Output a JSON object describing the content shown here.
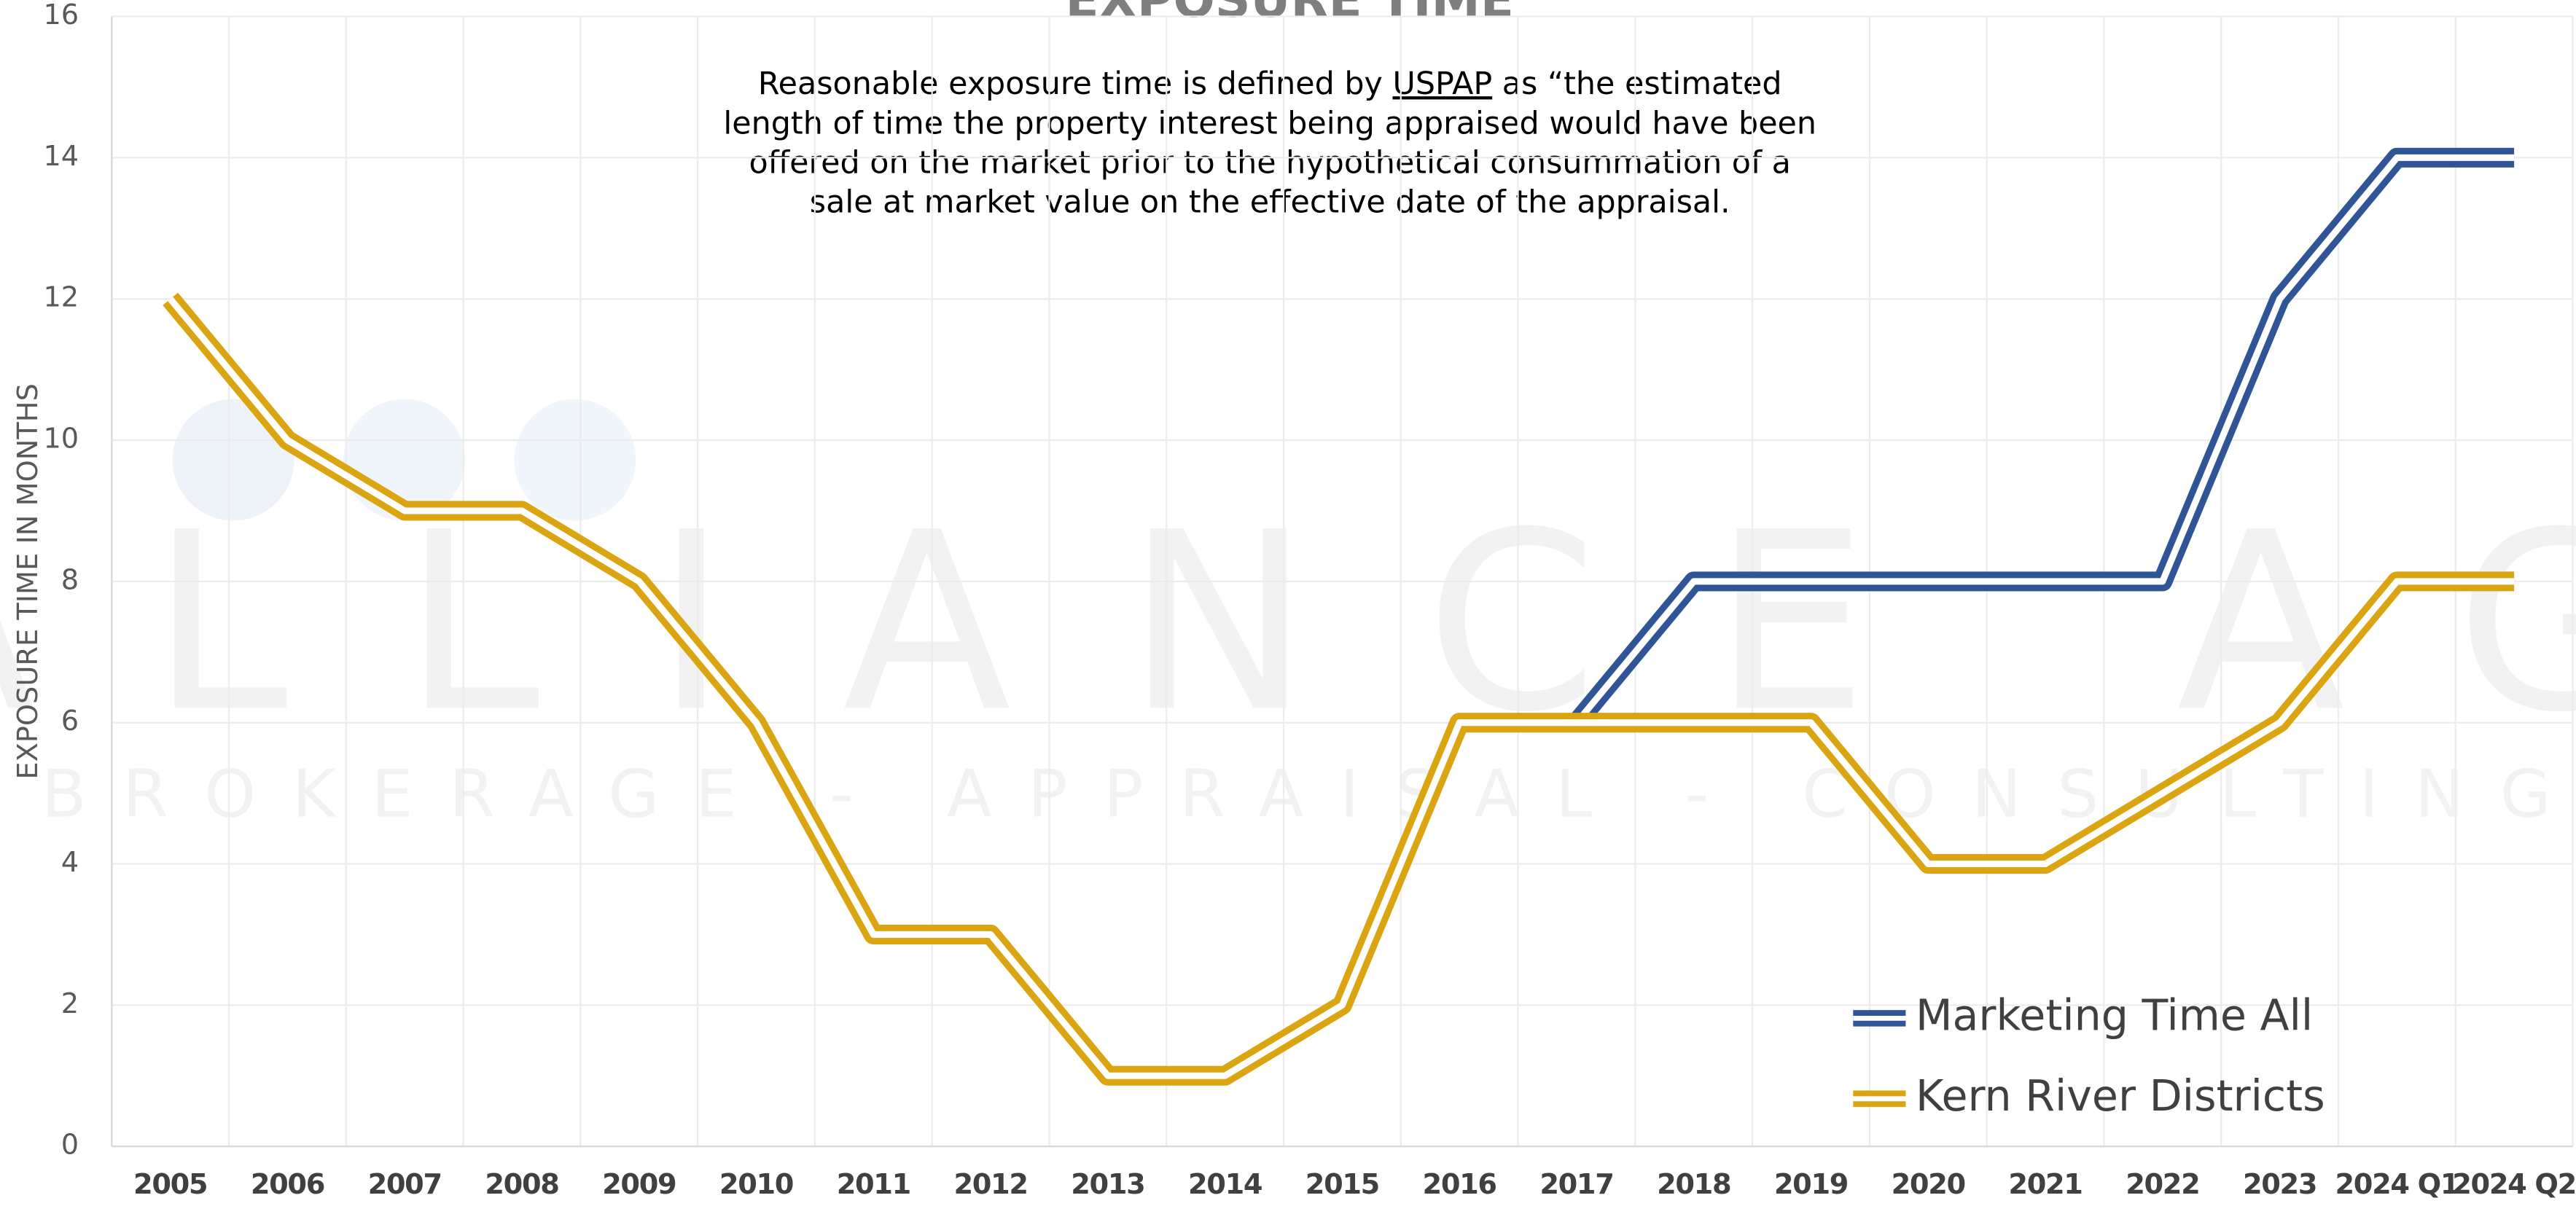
{
  "chart_data": {
    "type": "line",
    "title": "EXPOSURE TIME",
    "annotation": {
      "lines": [
        [
          "Reasonable exposure time is defined by ",
          "USPAP",
          " as “the estimated"
        ],
        [
          "length of time the property interest being appraised would have been"
        ],
        [
          "offered on the market prior to the hypothetical consummation of a"
        ],
        [
          "sale at market value on the effective date of the appraisal."
        ]
      ]
    },
    "watermark": [
      "ALLIANCE AG",
      "BROKERAGE - APPRAISAL - CONSULTING"
    ],
    "y_label": "EXPOSURE TIME IN MONTHS",
    "categories": [
      "2005",
      "2006",
      "2007",
      "2008",
      "2009",
      "2010",
      "2011",
      "2012",
      "2013",
      "2014",
      "2015",
      "2016",
      "2017",
      "2018",
      "2019",
      "2020",
      "2021",
      "2022",
      "2023",
      "2024 Q1",
      "2024 Q2"
    ],
    "series": [
      {
        "name": "Marketing Time All",
        "color": "#2f5597",
        "values": [
          null,
          null,
          null,
          null,
          null,
          null,
          null,
          null,
          null,
          null,
          null,
          null,
          6,
          8,
          8,
          8,
          8,
          8,
          12,
          14,
          14
        ]
      },
      {
        "name": "Kern River Districts",
        "color": "#daa510",
        "values": [
          12,
          10,
          9,
          9,
          8,
          6,
          3,
          3,
          1,
          1,
          2,
          6,
          6,
          6,
          6,
          4,
          4,
          5,
          6,
          8,
          8
        ]
      }
    ],
    "ylim": [
      0,
      16
    ],
    "yticks": [
      0,
      2,
      4,
      6,
      8,
      10,
      12,
      14,
      16
    ],
    "grid": true,
    "legend": "bottom-right"
  }
}
